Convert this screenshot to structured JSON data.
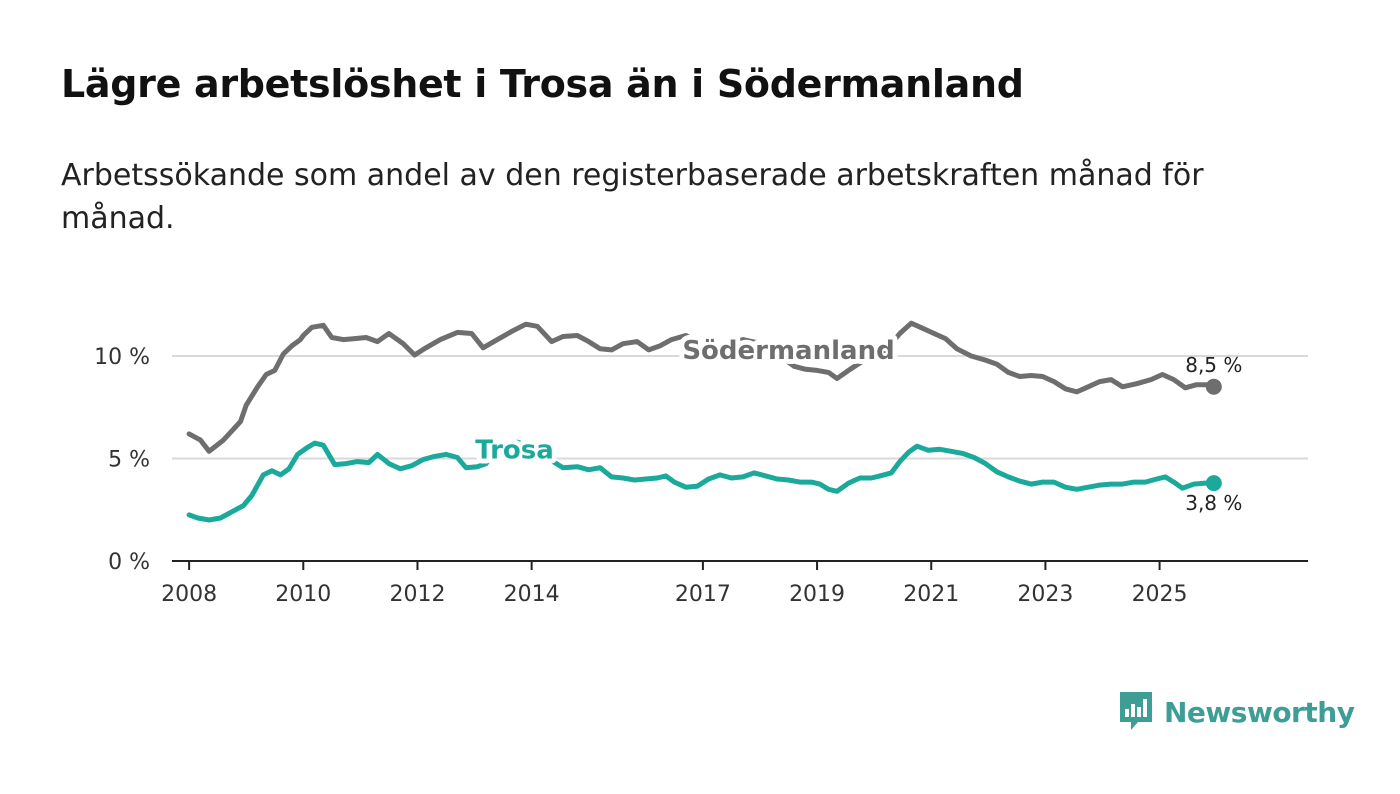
{
  "title": "Lägre arbetslöshet i Trosa än i Södermanland",
  "subtitle": "Arbetssökande som andel av den registerbaserade arbetskraften månad för månad.",
  "brand": {
    "name": "Newsworthy",
    "color": "#3e9e96"
  },
  "chart_data": {
    "type": "line",
    "title": "Lägre arbetslöshet i Trosa än i Södermanland",
    "xlabel": "",
    "ylabel": "",
    "xlim": [
      2007.7,
      2027.6
    ],
    "ylim": [
      0,
      12
    ],
    "y_ticks": [
      0,
      5,
      10
    ],
    "y_tick_labels": [
      "0 %",
      "5 %",
      "10 %"
    ],
    "x_ticks": [
      2008,
      2010,
      2012,
      2014,
      2017,
      2019,
      2021,
      2023,
      2025
    ],
    "x_tick_labels": [
      "2008",
      "2010",
      "2012",
      "2014",
      "2017",
      "2019",
      "2021",
      "2023",
      "2025"
    ],
    "grid": true,
    "series": [
      {
        "name": "Södermanland",
        "color": "#6e6e6e",
        "label_position": 2018.5,
        "end_label": "8,5 %",
        "points": [
          [
            2008.0,
            6.2
          ],
          [
            2008.2,
            5.9
          ],
          [
            2008.35,
            5.35
          ],
          [
            2008.6,
            5.9
          ],
          [
            2008.9,
            6.8
          ],
          [
            2009.0,
            7.6
          ],
          [
            2009.2,
            8.5
          ],
          [
            2009.35,
            9.1
          ],
          [
            2009.5,
            9.3
          ],
          [
            2009.65,
            10.1
          ],
          [
            2009.8,
            10.5
          ],
          [
            2009.95,
            10.8
          ],
          [
            2010.0,
            11.0
          ],
          [
            2010.15,
            11.4
          ],
          [
            2010.35,
            11.5
          ],
          [
            2010.5,
            10.9
          ],
          [
            2010.7,
            10.8
          ],
          [
            2010.9,
            10.85
          ],
          [
            2011.1,
            10.9
          ],
          [
            2011.3,
            10.7
          ],
          [
            2011.5,
            11.1
          ],
          [
            2011.75,
            10.6
          ],
          [
            2011.95,
            10.05
          ],
          [
            2012.15,
            10.4
          ],
          [
            2012.4,
            10.8
          ],
          [
            2012.7,
            11.15
          ],
          [
            2012.95,
            11.1
          ],
          [
            2013.15,
            10.4
          ],
          [
            2013.4,
            10.8
          ],
          [
            2013.65,
            11.2
          ],
          [
            2013.9,
            11.55
          ],
          [
            2014.1,
            11.45
          ],
          [
            2014.35,
            10.7
          ],
          [
            2014.55,
            10.95
          ],
          [
            2014.8,
            11.0
          ],
          [
            2015.0,
            10.7
          ],
          [
            2015.2,
            10.35
          ],
          [
            2015.4,
            10.3
          ],
          [
            2015.6,
            10.6
          ],
          [
            2015.85,
            10.7
          ],
          [
            2016.05,
            10.3
          ],
          [
            2016.25,
            10.5
          ],
          [
            2016.45,
            10.8
          ],
          [
            2016.7,
            11.0
          ],
          [
            2016.95,
            10.65
          ],
          [
            2017.2,
            10.35
          ],
          [
            2017.45,
            10.6
          ],
          [
            2017.7,
            10.8
          ],
          [
            2017.95,
            10.65
          ],
          [
            2018.2,
            10.3
          ],
          [
            2018.4,
            9.9
          ],
          [
            2018.6,
            9.5
          ],
          [
            2018.8,
            9.35
          ],
          [
            2019.0,
            9.3
          ],
          [
            2019.2,
            9.2
          ],
          [
            2019.35,
            8.9
          ],
          [
            2019.55,
            9.3
          ],
          [
            2019.8,
            9.75
          ],
          [
            2020.0,
            9.9
          ],
          [
            2020.25,
            10.4
          ],
          [
            2020.45,
            11.1
          ],
          [
            2020.65,
            11.6
          ],
          [
            2020.85,
            11.35
          ],
          [
            2021.05,
            11.1
          ],
          [
            2021.25,
            10.85
          ],
          [
            2021.45,
            10.35
          ],
          [
            2021.7,
            10.0
          ],
          [
            2021.95,
            9.8
          ],
          [
            2022.15,
            9.6
          ],
          [
            2022.35,
            9.2
          ],
          [
            2022.55,
            9.0
          ],
          [
            2022.75,
            9.05
          ],
          [
            2022.95,
            9.0
          ],
          [
            2023.15,
            8.75
          ],
          [
            2023.35,
            8.4
          ],
          [
            2023.55,
            8.25
          ],
          [
            2023.75,
            8.5
          ],
          [
            2023.95,
            8.75
          ],
          [
            2024.15,
            8.85
          ],
          [
            2024.35,
            8.5
          ],
          [
            2024.6,
            8.65
          ],
          [
            2024.85,
            8.85
          ],
          [
            2025.05,
            9.1
          ],
          [
            2025.25,
            8.85
          ],
          [
            2025.45,
            8.45
          ],
          [
            2025.65,
            8.6
          ],
          [
            2025.85,
            8.6
          ],
          [
            2025.95,
            8.5
          ]
        ]
      },
      {
        "name": "Trosa",
        "color": "#1ba99b",
        "label_position": 2013.7,
        "end_label": "3,8 %",
        "points": [
          [
            2008.0,
            2.25
          ],
          [
            2008.15,
            2.1
          ],
          [
            2008.35,
            2.0
          ],
          [
            2008.55,
            2.1
          ],
          [
            2008.75,
            2.4
          ],
          [
            2008.95,
            2.7
          ],
          [
            2009.1,
            3.2
          ],
          [
            2009.3,
            4.2
          ],
          [
            2009.45,
            4.4
          ],
          [
            2009.6,
            4.2
          ],
          [
            2009.75,
            4.5
          ],
          [
            2009.9,
            5.2
          ],
          [
            2010.05,
            5.5
          ],
          [
            2010.2,
            5.75
          ],
          [
            2010.35,
            5.65
          ],
          [
            2010.55,
            4.7
          ],
          [
            2010.75,
            4.75
          ],
          [
            2010.95,
            4.85
          ],
          [
            2011.15,
            4.8
          ],
          [
            2011.3,
            5.2
          ],
          [
            2011.5,
            4.75
          ],
          [
            2011.7,
            4.5
          ],
          [
            2011.9,
            4.65
          ],
          [
            2012.1,
            4.95
          ],
          [
            2012.3,
            5.1
          ],
          [
            2012.5,
            5.2
          ],
          [
            2012.7,
            5.05
          ],
          [
            2012.85,
            4.55
          ],
          [
            2013.05,
            4.6
          ],
          [
            2013.2,
            4.75
          ],
          [
            2013.35,
            5.4
          ],
          [
            2013.55,
            5.6
          ],
          [
            2013.75,
            5.8
          ],
          [
            2013.95,
            5.6
          ],
          [
            2014.15,
            5.3
          ],
          [
            2014.35,
            4.9
          ],
          [
            2014.55,
            4.55
          ],
          [
            2014.8,
            4.6
          ],
          [
            2015.0,
            4.45
          ],
          [
            2015.2,
            4.55
          ],
          [
            2015.4,
            4.1
          ],
          [
            2015.6,
            4.05
          ],
          [
            2015.8,
            3.95
          ],
          [
            2016.0,
            4.0
          ],
          [
            2016.2,
            4.05
          ],
          [
            2016.35,
            4.15
          ],
          [
            2016.5,
            3.85
          ],
          [
            2016.7,
            3.6
          ],
          [
            2016.9,
            3.65
          ],
          [
            2017.1,
            4.0
          ],
          [
            2017.3,
            4.2
          ],
          [
            2017.5,
            4.05
          ],
          [
            2017.7,
            4.1
          ],
          [
            2017.9,
            4.3
          ],
          [
            2018.1,
            4.15
          ],
          [
            2018.3,
            4.0
          ],
          [
            2018.5,
            3.95
          ],
          [
            2018.7,
            3.85
          ],
          [
            2018.9,
            3.85
          ],
          [
            2019.05,
            3.75
          ],
          [
            2019.2,
            3.5
          ],
          [
            2019.35,
            3.4
          ],
          [
            2019.55,
            3.8
          ],
          [
            2019.75,
            4.05
          ],
          [
            2019.95,
            4.05
          ],
          [
            2020.1,
            4.15
          ],
          [
            2020.3,
            4.3
          ],
          [
            2020.45,
            4.85
          ],
          [
            2020.6,
            5.3
          ],
          [
            2020.75,
            5.6
          ],
          [
            2020.95,
            5.4
          ],
          [
            2021.15,
            5.45
          ],
          [
            2021.35,
            5.35
          ],
          [
            2021.55,
            5.25
          ],
          [
            2021.75,
            5.05
          ],
          [
            2021.95,
            4.75
          ],
          [
            2022.15,
            4.35
          ],
          [
            2022.35,
            4.1
          ],
          [
            2022.55,
            3.9
          ],
          [
            2022.75,
            3.75
          ],
          [
            2022.95,
            3.85
          ],
          [
            2023.15,
            3.85
          ],
          [
            2023.35,
            3.6
          ],
          [
            2023.55,
            3.5
          ],
          [
            2023.75,
            3.6
          ],
          [
            2023.95,
            3.7
          ],
          [
            2024.15,
            3.75
          ],
          [
            2024.35,
            3.75
          ],
          [
            2024.55,
            3.85
          ],
          [
            2024.75,
            3.85
          ],
          [
            2024.95,
            4.0
          ],
          [
            2025.1,
            4.1
          ],
          [
            2025.25,
            3.85
          ],
          [
            2025.4,
            3.55
          ],
          [
            2025.6,
            3.75
          ],
          [
            2025.8,
            3.8
          ],
          [
            2025.95,
            3.8
          ]
        ]
      }
    ]
  }
}
